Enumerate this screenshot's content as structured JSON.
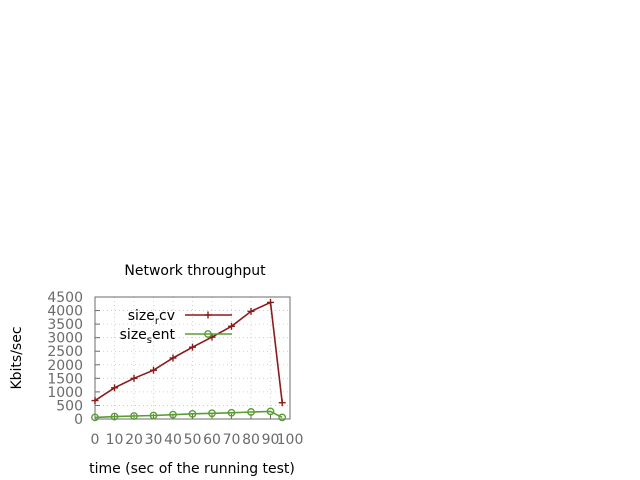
{
  "chart_data": {
    "type": "line",
    "title": "Network throughput",
    "xlabel": "time (sec of the running test)",
    "ylabel": "Kbits/sec",
    "xlim": [
      0,
      100
    ],
    "ylim": [
      0,
      4500
    ],
    "xticks": [
      0,
      10,
      20,
      30,
      40,
      50,
      60,
      70,
      80,
      90,
      100
    ],
    "yticks": [
      0,
      500,
      1000,
      1500,
      2000,
      2500,
      3000,
      3500,
      4000,
      4500
    ],
    "grid": true,
    "legend_position": "top-right",
    "series": [
      {
        "name": "size_rcv",
        "legend_base": "size",
        "legend_sub": "r",
        "legend_tail": "cv",
        "color": "#8b1a1a",
        "marker": "plus",
        "x": [
          0,
          10,
          20,
          30,
          40,
          50,
          60,
          70,
          80,
          90,
          96
        ],
        "y": [
          680,
          1150,
          1500,
          1800,
          2250,
          2650,
          3020,
          3420,
          3970,
          4300,
          600
        ]
      },
      {
        "name": "size_sent",
        "legend_base": "size",
        "legend_sub": "s",
        "legend_tail": "ent",
        "color": "#5a9e32",
        "marker": "circle",
        "x": [
          0,
          10,
          20,
          30,
          40,
          50,
          60,
          70,
          80,
          90,
          96
        ],
        "y": [
          60,
          90,
          110,
          130,
          160,
          190,
          210,
          230,
          260,
          280,
          60
        ]
      }
    ]
  }
}
